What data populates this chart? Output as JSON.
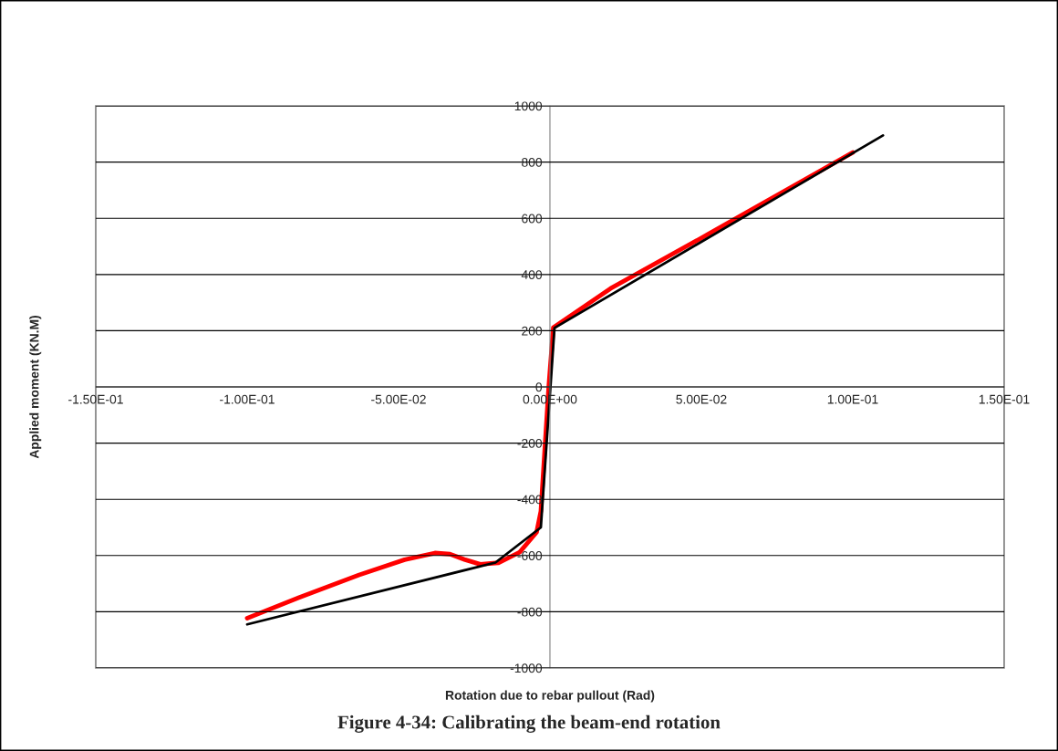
{
  "chart_data": {
    "type": "line",
    "xlabel": "Rotation due to rebar pullout (Rad)",
    "ylabel": "Applied moment (KN.M)",
    "annotations": [
      "Figure 4-34: Calibrating the beam-end rotation"
    ],
    "series": [
      {
        "color": "#ff0000",
        "x": [
          -0.1,
          -0.083,
          -0.063,
          -0.048,
          -0.038,
          -0.033,
          -0.028,
          -0.023,
          -0.017,
          -0.01,
          -0.0044,
          -0.003,
          -0.0004,
          0.0011,
          0.02,
          0.05,
          0.1
        ],
        "values": [
          -823,
          -750,
          -669,
          -615,
          -591,
          -595,
          -615,
          -631,
          -626,
          -588,
          -517,
          -442,
          0,
          211,
          350,
          530,
          834
        ]
      },
      {
        "color": "#000000",
        "x": [
          -0.1,
          -0.018,
          -0.003,
          0.0015,
          0.11
        ],
        "values": [
          -845,
          -625,
          -500,
          210,
          895
        ]
      }
    ],
    "xlim": [
      -0.15,
      0.15
    ],
    "ylim": [
      -1000,
      1000
    ],
    "xticks": [
      {
        "value": -0.15,
        "label": "-1.50E-01"
      },
      {
        "value": -0.1,
        "label": "-1.00E-01"
      },
      {
        "value": -0.05,
        "label": "-5.00E-02"
      },
      {
        "value": 0,
        "label": "0.00E+00"
      },
      {
        "value": 0.05,
        "label": "5.00E-02"
      },
      {
        "value": 0.1,
        "label": "1.00E-01"
      },
      {
        "value": 0.15,
        "label": "1.50E-01"
      }
    ],
    "yticks": [
      -1000,
      -800,
      -600,
      -400,
      -200,
      0,
      200,
      400,
      600,
      800,
      1000
    ],
    "grid": "y",
    "legend": false,
    "marker": "none",
    "line_style": "solid"
  }
}
